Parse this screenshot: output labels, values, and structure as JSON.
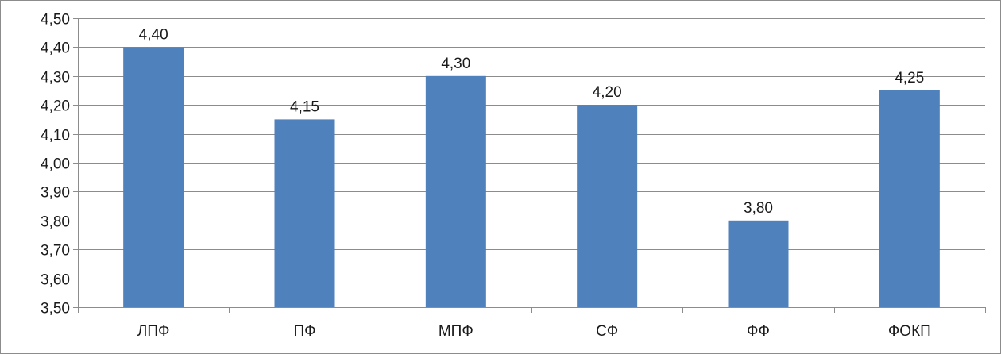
{
  "chart_data": {
    "type": "bar",
    "categories": [
      "ЛПФ",
      "ПФ",
      "МПФ",
      "СФ",
      "ФФ",
      "ФОКП"
    ],
    "values": [
      4.4,
      4.15,
      4.3,
      4.2,
      3.8,
      4.25
    ],
    "data_labels": [
      "4,40",
      "4,15",
      "4,30",
      "4,20",
      "3,80",
      "4,25"
    ],
    "ylim": [
      3.5,
      4.5
    ],
    "y_ticks": [
      "3,50",
      "3,60",
      "3,70",
      "3,80",
      "3,90",
      "4,00",
      "4,10",
      "4,20",
      "4,30",
      "4,40",
      "4,50"
    ],
    "y_tick_values": [
      3.5,
      3.6,
      3.7,
      3.8,
      3.9,
      4.0,
      4.1,
      4.2,
      4.3,
      4.4,
      4.5
    ],
    "grid": true,
    "legend": "none",
    "colors": {
      "bar": "#4f81bd",
      "grid": "#8c8c8c",
      "axis": "#8c8c8c"
    }
  }
}
